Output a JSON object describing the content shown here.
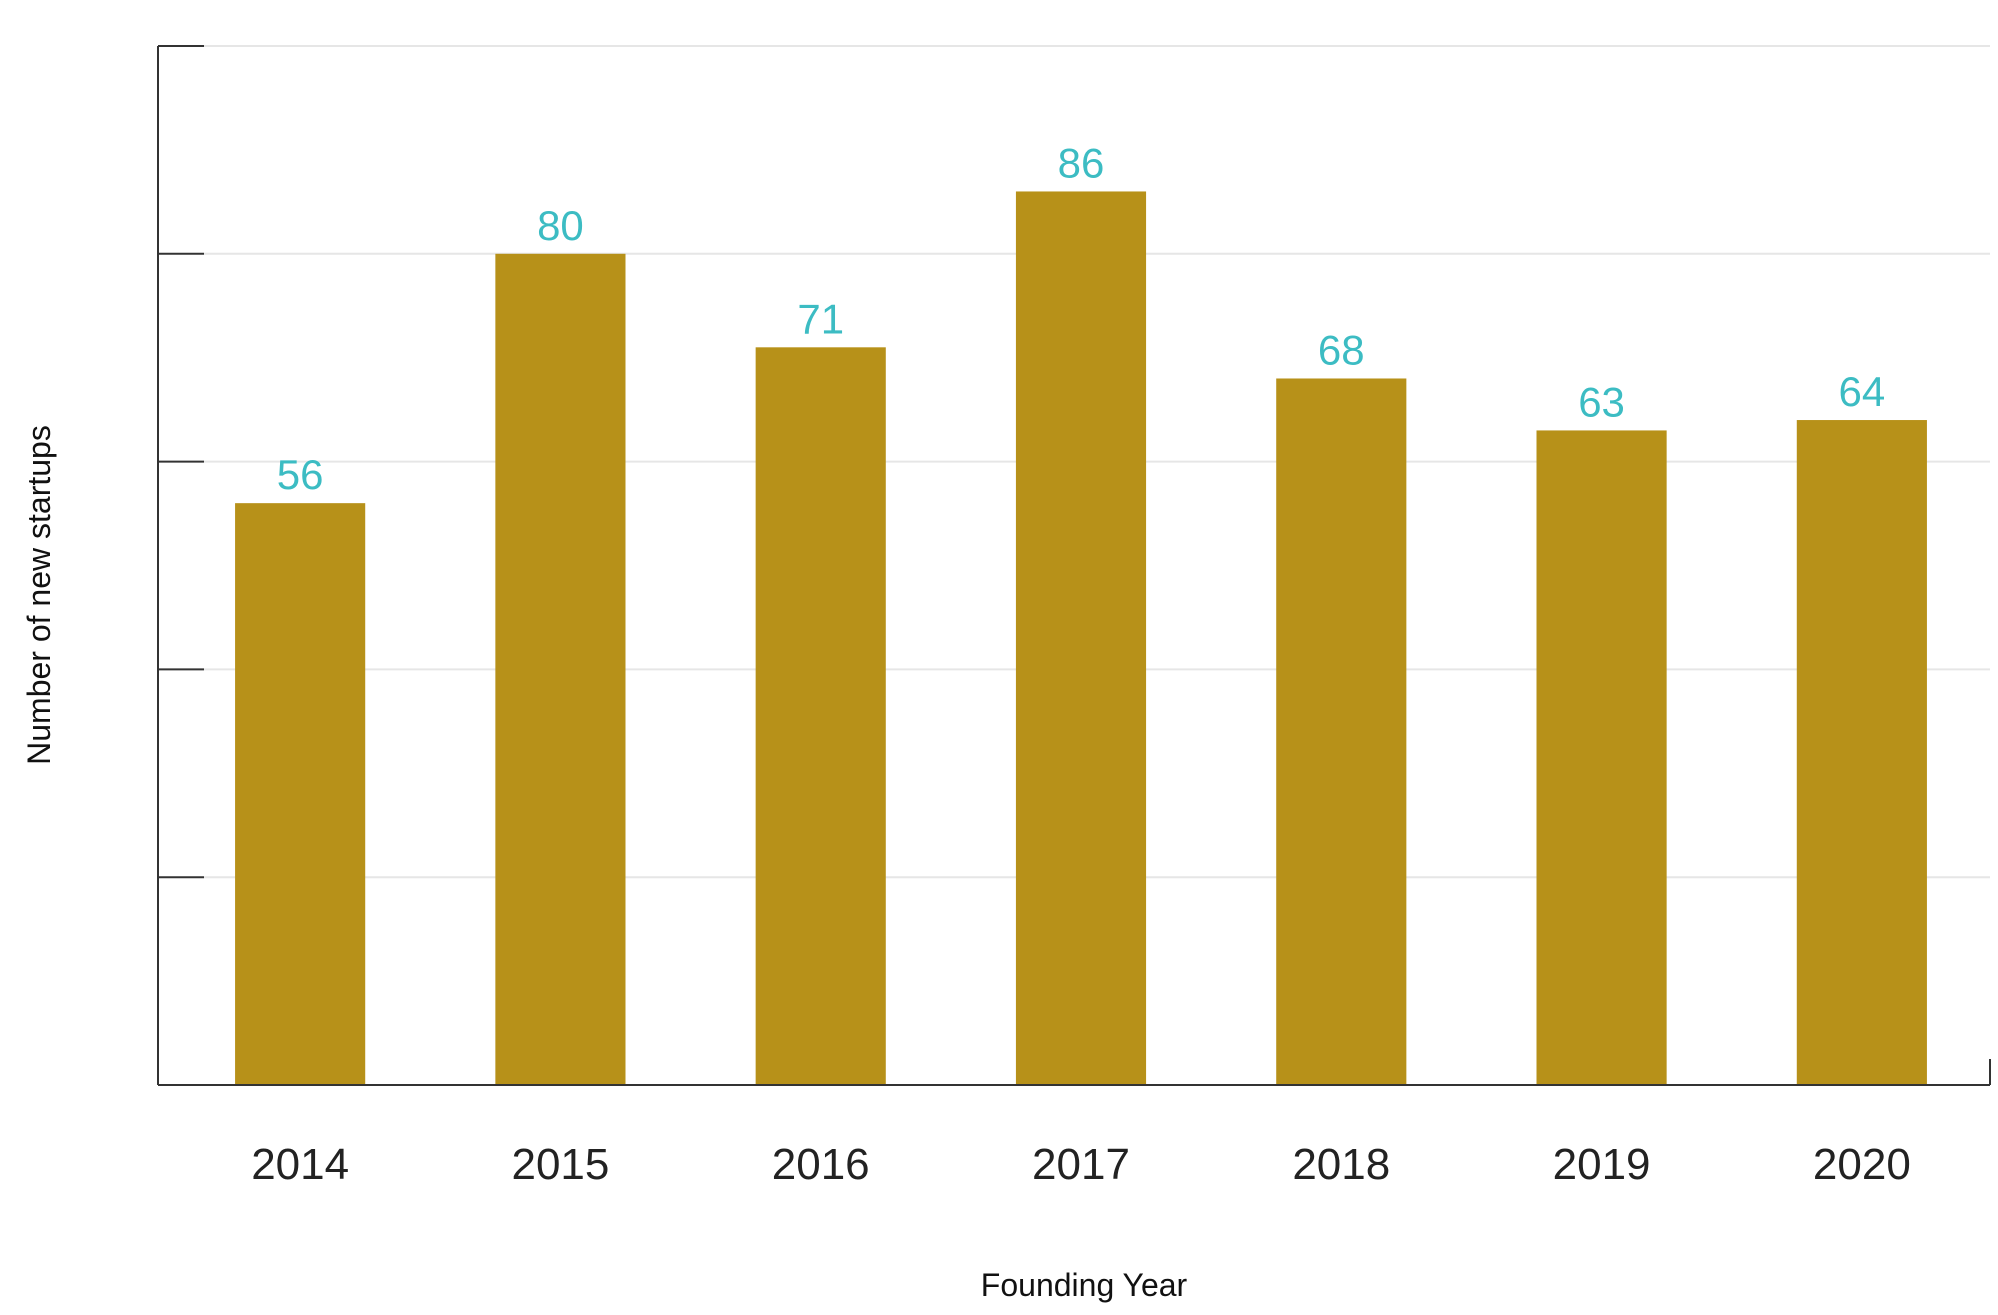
{
  "chart_data": {
    "type": "bar",
    "title": "",
    "xlabel": "Founding Year",
    "ylabel": "Number of new startups",
    "categories": [
      "2014",
      "2015",
      "2016",
      "2017",
      "2018",
      "2019",
      "2020"
    ],
    "series": [
      {
        "values": [
          56,
          80,
          71,
          86,
          68,
          63,
          64
        ]
      }
    ],
    "ylim": [
      0,
      100
    ],
    "y_tick_values": [
      0,
      20,
      40,
      60,
      80,
      100
    ],
    "y_tick_labels_shown": false,
    "data_labels": true,
    "grid": "horizontal",
    "legend": "none",
    "colors": {
      "bar": "#b79119",
      "data_label": "#3cbcc3"
    }
  }
}
